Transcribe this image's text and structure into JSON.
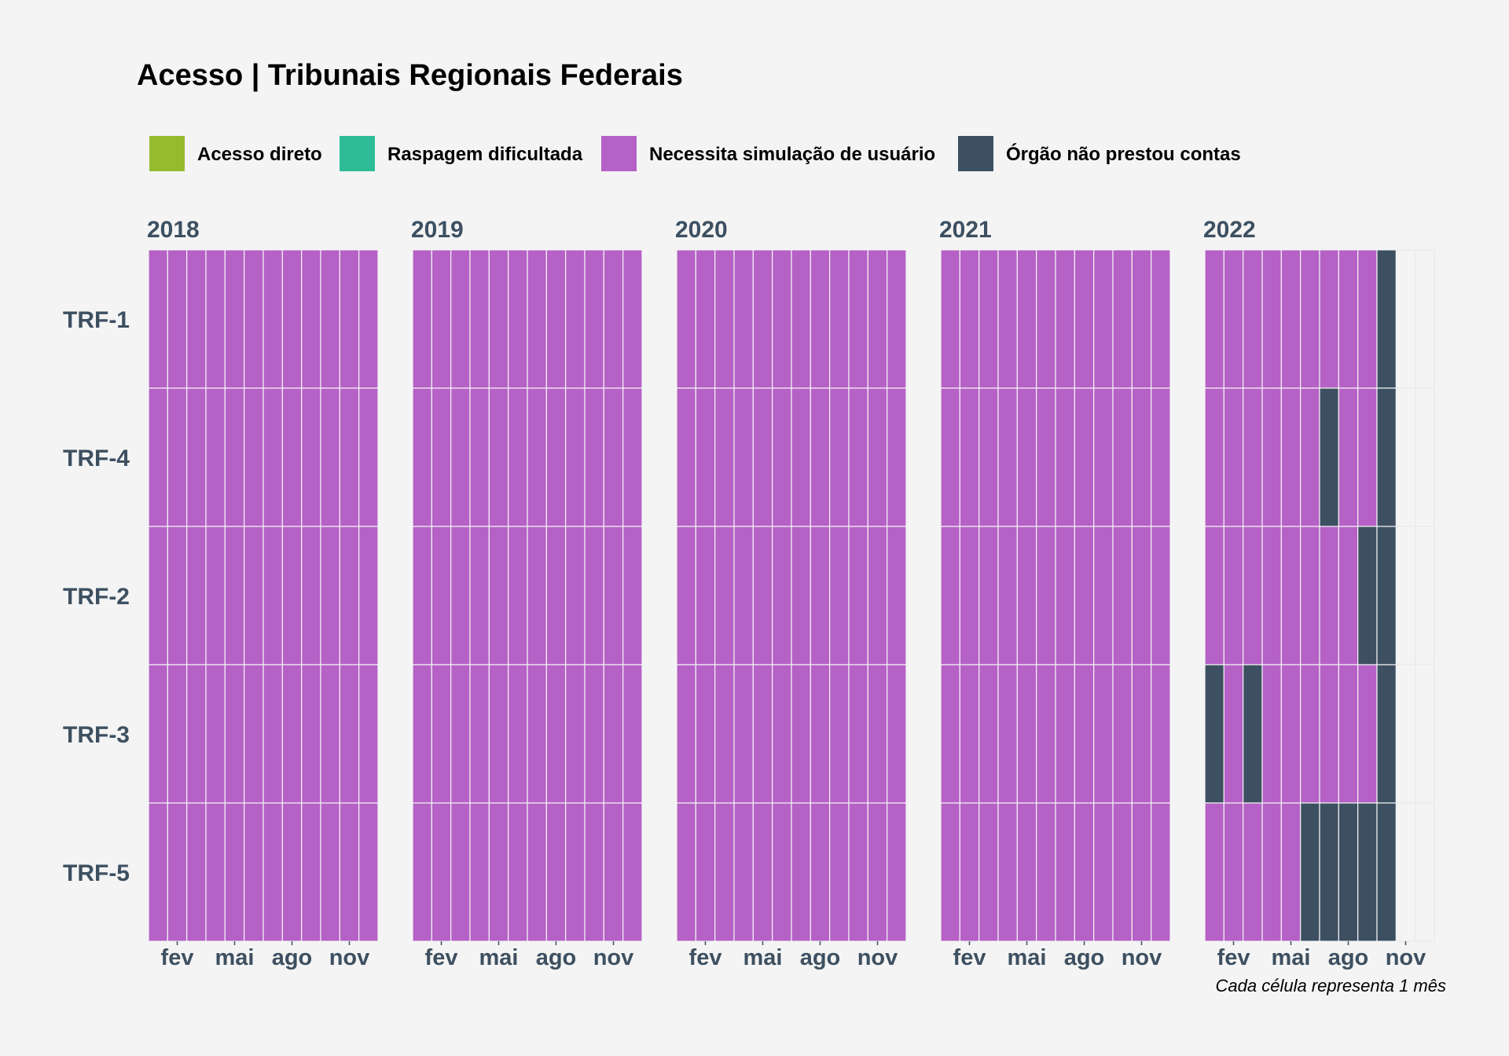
{
  "chart_data": {
    "type": "heatmap",
    "title": "Acesso | Tribunais Regionais Federais",
    "caption": "Cada célula representa 1 mês",
    "legend": [
      {
        "key": "direto",
        "label": "Acesso direto",
        "color": "#97bb2f"
      },
      {
        "key": "raspagem",
        "label": "Raspagem dificultada",
        "color": "#2dbc96"
      },
      {
        "key": "simulacao",
        "label": "Necessita simulação de usuário",
        "color": "#b561c6"
      },
      {
        "key": "nao_prestou",
        "label": "Órgão não prestou contas",
        "color": "#3d5061"
      }
    ],
    "legend_position": "top-left",
    "facets": [
      "2018",
      "2019",
      "2020",
      "2021",
      "2022"
    ],
    "rows": [
      "TRF-1",
      "TRF-4",
      "TRF-2",
      "TRF-3",
      "TRF-5"
    ],
    "x_ticks": [
      {
        "month": 2,
        "label": "fev"
      },
      {
        "month": 5,
        "label": "mai"
      },
      {
        "month": 8,
        "label": "ago"
      },
      {
        "month": 11,
        "label": "nov"
      }
    ],
    "default_status": "simulacao",
    "cells_2022": {
      "TRF-1": [
        "simulacao",
        "simulacao",
        "simulacao",
        "simulacao",
        "simulacao",
        "simulacao",
        "simulacao",
        "simulacao",
        "simulacao",
        "nao_prestou",
        null,
        null
      ],
      "TRF-4": [
        "simulacao",
        "simulacao",
        "simulacao",
        "simulacao",
        "simulacao",
        "simulacao",
        "nao_prestou",
        "simulacao",
        "simulacao",
        "nao_prestou",
        null,
        null
      ],
      "TRF-2": [
        "simulacao",
        "simulacao",
        "simulacao",
        "simulacao",
        "simulacao",
        "simulacao",
        "simulacao",
        "simulacao",
        "nao_prestou",
        "nao_prestou",
        null,
        null
      ],
      "TRF-3": [
        "nao_prestou",
        "simulacao",
        "nao_prestou",
        "simulacao",
        "simulacao",
        "simulacao",
        "simulacao",
        "simulacao",
        "simulacao",
        "nao_prestou",
        null,
        null
      ],
      "TRF-5": [
        "simulacao",
        "simulacao",
        "simulacao",
        "simulacao",
        "simulacao",
        "nao_prestou",
        "nao_prestou",
        "nao_prestou",
        "nao_prestou",
        "nao_prestou",
        null,
        null
      ]
    }
  }
}
